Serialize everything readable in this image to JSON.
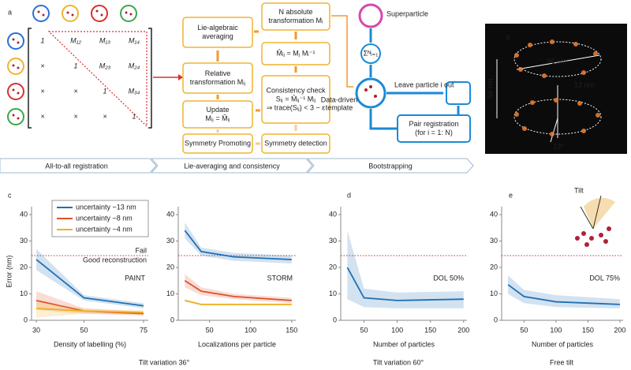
{
  "panel_labels": [
    "a",
    "b",
    "c",
    "d",
    "e"
  ],
  "diagram": {
    "matrix": [
      [
        "1",
        "M₁₂",
        "M₁₃",
        "M₁₄"
      ],
      [
        "×",
        "1",
        "M₂₃",
        "M₂₄"
      ],
      [
        "×",
        "×",
        "1",
        "M₃₄"
      ],
      [
        "×",
        "×",
        "×",
        "1"
      ]
    ],
    "boxes": [
      {
        "lines": [
          "Lie-algebraic",
          "averaging"
        ]
      },
      {
        "lines": [
          "Relative",
          "transformation Mᵢⱼ"
        ]
      },
      {
        "lines": [
          "Update",
          "Mᵢⱼ = M̂ᵢⱼ"
        ]
      },
      {
        "lines": [
          "Symmetry Promoting"
        ]
      },
      {
        "lines": [
          "N absolute",
          "transformation Mᵢ"
        ]
      },
      {
        "lines": [
          "M̂ᵢⱼ = Mⱼ Mᵢ⁻¹"
        ]
      },
      {
        "lines": [
          "Consistency check",
          "Sᵢⱼ = M̂ᵢⱼ⁻¹ Mᵢⱼ",
          "⇒ trace(Sᵢⱼ) < 3 − ε"
        ]
      },
      {
        "lines": [
          "Symmetry detection"
        ]
      }
    ],
    "superparticle": "Superparticle",
    "sum": "Σᴺᵢ₌₁",
    "template": [
      "Data-driven",
      "template"
    ],
    "leave_out": "Leave particle i out",
    "pair_registration": [
      "Pair registration",
      "(for i = 1: N)"
    ]
  },
  "image": {
    "diameter": "96 nm",
    "gap": "12 nm",
    "height": "59 nm",
    "angle": "13°"
  },
  "stages": [
    "All-to-all registration",
    "Lie-averaging and consistency",
    "Bootstrapping"
  ],
  "tilt_label": "Tilt",
  "conditions": [
    "Tilt variation 36°",
    "Tilt variation 60°",
    "Free tilt"
  ],
  "chart_data": [
    {
      "type": "line",
      "label": "PAINT",
      "ylabel": "Error (nm)",
      "xlabel": "Density of labelling (%)",
      "threshold": 24.5,
      "threshold_above": "Fail",
      "threshold_below": "Good reconstruction",
      "x": [
        30,
        50,
        75
      ],
      "xlim": [
        28,
        77
      ],
      "xticks": [
        30,
        50,
        75
      ],
      "ylim": [
        0,
        43
      ],
      "yticks": [
        0,
        10,
        20,
        30,
        40
      ],
      "series": [
        {
          "name": "uncertainty ~13 nm",
          "color": "#1f6fb5",
          "values": [
            23,
            8.5,
            5.5
          ],
          "lower": [
            19,
            7.5,
            4.5
          ],
          "upper": [
            27,
            9.5,
            6.5
          ]
        },
        {
          "name": "uncertainty ~8 nm",
          "color": "#e0502a",
          "values": [
            7.5,
            3.5,
            2.5
          ],
          "lower": [
            4,
            2.5,
            1.8
          ],
          "upper": [
            11,
            4.5,
            3.2
          ]
        },
        {
          "name": "uncertainty ~4 nm",
          "color": "#f0b020",
          "values": [
            4.5,
            3.5,
            3
          ],
          "lower": [
            1,
            2.5,
            2.2
          ],
          "upper": [
            7,
            4.5,
            3.8
          ]
        }
      ]
    },
    {
      "type": "line",
      "label": "STORM",
      "xlabel": "Localizations per particle",
      "threshold": 24.5,
      "x": [
        20,
        40,
        80,
        150
      ],
      "xlim": [
        12,
        155
      ],
      "xticks": [
        50,
        100,
        150
      ],
      "ylim": [
        0,
        43
      ],
      "yticks": [
        0,
        10,
        20,
        30,
        40
      ],
      "series": [
        {
          "color": "#1f6fb5",
          "values": [
            34,
            26,
            24,
            23
          ],
          "lower": [
            31,
            24.5,
            22.5,
            21.5
          ],
          "upper": [
            37,
            27.5,
            25.5,
            24.5
          ]
        },
        {
          "color": "#e0502a",
          "values": [
            15,
            11,
            9,
            7.5
          ],
          "lower": [
            12.5,
            9.5,
            8,
            6.5
          ],
          "upper": [
            17.5,
            12.5,
            10,
            8.5
          ]
        },
        {
          "color": "#f0b020",
          "values": [
            7.5,
            6,
            6,
            6
          ],
          "lower": [
            7,
            5.6,
            5.6,
            5.6
          ],
          "upper": [
            8,
            6.4,
            6.4,
            6.4
          ]
        }
      ]
    },
    {
      "type": "line",
      "label": "DOL 50%",
      "xlabel": "Number of particles",
      "threshold": 24.5,
      "x": [
        25,
        50,
        100,
        200
      ],
      "xlim": [
        15,
        205
      ],
      "xticks": [
        50,
        100,
        150,
        200
      ],
      "ylim": [
        0,
        43
      ],
      "yticks": [
        0,
        10,
        20,
        30,
        40
      ],
      "series": [
        {
          "color": "#1f6fb5",
          "values": [
            20,
            8.5,
            7.5,
            8
          ],
          "lower": [
            8,
            5,
            4.5,
            4.5
          ],
          "upper": [
            34,
            12,
            10.5,
            11
          ]
        }
      ]
    },
    {
      "type": "line",
      "label": "DOL 75%",
      "xlabel": "Number of particles",
      "threshold": 24.5,
      "x": [
        25,
        50,
        100,
        200
      ],
      "xlim": [
        15,
        205
      ],
      "xticks": [
        50,
        100,
        150,
        200
      ],
      "ylim": [
        0,
        43
      ],
      "yticks": [
        0,
        10,
        20,
        30,
        40
      ],
      "series": [
        {
          "color": "#1f6fb5",
          "values": [
            13.5,
            9,
            7,
            6
          ],
          "lower": [
            10,
            6.5,
            5,
            4.5
          ],
          "upper": [
            17,
            11.5,
            9.5,
            8
          ]
        }
      ]
    }
  ]
}
